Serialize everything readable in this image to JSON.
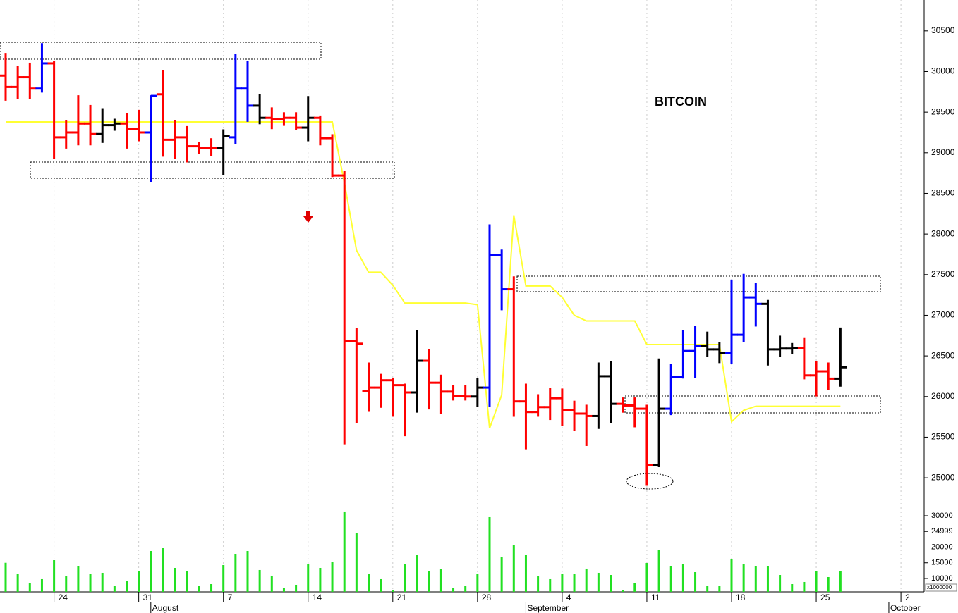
{
  "chart_data": {
    "type": "ohlc",
    "title": "BITCOIN",
    "x": [
      "Jul 20",
      "Jul 21",
      "Jul 22",
      "Jul 23",
      "Jul 24",
      "Jul 25",
      "Jul 26",
      "Jul 27",
      "Jul 28",
      "Jul 29",
      "Jul 30",
      "Jul 31",
      "Aug 1",
      "Aug 2",
      "Aug 3",
      "Aug 4",
      "Aug 5",
      "Aug 6",
      "Aug 7",
      "Aug 8",
      "Aug 9",
      "Aug 10",
      "Aug 11",
      "Aug 12",
      "Aug 13",
      "Aug 14",
      "Aug 15",
      "Aug 16",
      "Aug 17",
      "Aug 18",
      "Aug 19",
      "Aug 20",
      "Aug 21",
      "Aug 22",
      "Aug 23",
      "Aug 24",
      "Aug 25",
      "Aug 26",
      "Aug 27",
      "Aug 28",
      "Aug 29",
      "Aug 30",
      "Aug 31",
      "Sep 1",
      "Sep 2",
      "Sep 3",
      "Sep 4",
      "Sep 5",
      "Sep 6",
      "Sep 7",
      "Sep 8",
      "Sep 9",
      "Sep 10",
      "Sep 11",
      "Sep 12",
      "Sep 13",
      "Sep 14",
      "Sep 15",
      "Sep 16",
      "Sep 17",
      "Sep 18",
      "Sep 19",
      "Sep 20",
      "Sep 21",
      "Sep 22",
      "Sep 23",
      "Sep 24",
      "Sep 25",
      "Sep 26",
      "Sep 27"
    ],
    "open": [
      29950,
      29810,
      29930,
      29790,
      30100,
      29190,
      29250,
      29360,
      29230,
      29340,
      29360,
      29290,
      29250,
      29720,
      29160,
      29190,
      29080,
      29060,
      29060,
      29190,
      29790,
      29580,
      29430,
      29410,
      29430,
      29310,
      29430,
      29180,
      28720,
      26680,
      26070,
      26110,
      26200,
      26140,
      26050,
      26440,
      26170,
      26060,
      26010,
      26000,
      26110,
      27740,
      27320,
      25940,
      25810,
      25870,
      25980,
      25830,
      25790,
      25760,
      26250,
      25910,
      25890,
      25850,
      25160,
      25850,
      26240,
      26560,
      26620,
      26580,
      26540,
      26760,
      27220,
      27140,
      26580,
      26590,
      26600,
      26260,
      26310,
      26220
    ],
    "high": [
      30220,
      30060,
      30100,
      30340,
      30120,
      29390,
      29700,
      29580,
      29540,
      29410,
      29480,
      29520,
      29700,
      30010,
      29390,
      29320,
      29120,
      29170,
      29280,
      30210,
      30120,
      29710,
      29550,
      29490,
      29490,
      29690,
      29450,
      29220,
      28770,
      26830,
      26410,
      26270,
      26220,
      26150,
      26810,
      26570,
      26260,
      26130,
      26130,
      26220,
      28110,
      27800,
      27470,
      26150,
      26020,
      26100,
      26090,
      25940,
      25890,
      26410,
      26430,
      25980,
      25980,
      25890,
      26460,
      26390,
      26810,
      26860,
      26790,
      26660,
      27430,
      27500,
      27390,
      27180,
      26740,
      26650,
      26720,
      26430,
      26410,
      26840
    ],
    "low": [
      29650,
      29670,
      29670,
      29750,
      28930,
      29060,
      29100,
      29100,
      29130,
      29280,
      29060,
      29150,
      28650,
      28960,
      28930,
      28890,
      28990,
      28970,
      28730,
      29120,
      29390,
      29360,
      29300,
      29340,
      29290,
      29150,
      29100,
      28710,
      25420,
      25680,
      25820,
      25870,
      25760,
      25520,
      25810,
      25850,
      25790,
      25960,
      25960,
      25880,
      25880,
      27070,
      25760,
      25360,
      25760,
      25720,
      25650,
      25590,
      25400,
      25610,
      25680,
      25810,
      25630,
      24910,
      25140,
      25780,
      26230,
      26240,
      26500,
      26420,
      26410,
      26680,
      26870,
      26390,
      26500,
      26530,
      26220,
      26010,
      26090,
      26130
    ],
    "close": [
      29810,
      29930,
      29790,
      30100,
      29190,
      29250,
      29360,
      29230,
      29340,
      29360,
      29290,
      29250,
      29700,
      29160,
      29190,
      29080,
      29060,
      29060,
      29210,
      29790,
      29580,
      29430,
      29410,
      29430,
      29310,
      29430,
      29180,
      28720,
      26680,
      26650,
      26110,
      26200,
      26140,
      26050,
      26440,
      26170,
      26060,
      26010,
      26000,
      26110,
      27740,
      27320,
      25940,
      25810,
      25870,
      25980,
      25830,
      25790,
      25760,
      26250,
      25910,
      25890,
      25850,
      25160,
      25850,
      26240,
      26560,
      26620,
      26580,
      26540,
      26760,
      27220,
      27140,
      26580,
      26590,
      26600,
      26260,
      26310,
      26220,
      26360
    ],
    "bar_colors": [
      "red",
      "red",
      "red",
      "blue",
      "red",
      "red",
      "red",
      "red",
      "black",
      "black",
      "red",
      "red",
      "blue",
      "red",
      "red",
      "red",
      "red",
      "red",
      "black",
      "blue",
      "blue",
      "black",
      "red",
      "red",
      "red",
      "black",
      "red",
      "red",
      "red",
      "red",
      "red",
      "red",
      "red",
      "red",
      "black",
      "red",
      "red",
      "red",
      "red",
      "black",
      "blue",
      "blue",
      "red",
      "red",
      "red",
      "red",
      "red",
      "red",
      "red",
      "black",
      "black",
      "red",
      "red",
      "red",
      "black",
      "blue",
      "blue",
      "blue",
      "black",
      "black",
      "blue",
      "blue",
      "blue",
      "black",
      "black",
      "black",
      "red",
      "red",
      "red",
      "black"
    ],
    "stop_line": {
      "color": "#ffff33",
      "values": [
        29380,
        29380,
        29380,
        29380,
        29380,
        29380,
        29380,
        29380,
        29380,
        29380,
        29380,
        29380,
        29380,
        29380,
        29380,
        29380,
        29380,
        29380,
        29380,
        29380,
        29380,
        29380,
        29380,
        29380,
        29380,
        29380,
        29380,
        29380,
        28630,
        27800,
        27530,
        27530,
        27370,
        27150,
        27150,
        27150,
        27150,
        27150,
        27150,
        27130,
        25610,
        26020,
        28230,
        27360,
        27360,
        27360,
        27220,
        27000,
        26930,
        26930,
        26930,
        26930,
        26930,
        26640,
        26640,
        26640,
        26640,
        26640,
        26640,
        26640,
        25690,
        25830,
        25880,
        25880,
        25880,
        25880,
        25880,
        25880,
        25880,
        25880
      ]
    },
    "ylim": [
      24680,
      30880
    ],
    "yticks": [
      25000,
      25500,
      26000,
      26500,
      27000,
      27500,
      28000,
      28500,
      29000,
      29500,
      30000,
      30500
    ],
    "xticks": [
      {
        "value": "Jul 24",
        "label": "24"
      },
      {
        "value": "Jul 31",
        "label": "31"
      },
      {
        "value": "Aug 7",
        "label": "7"
      },
      {
        "value": "Aug 14",
        "label": "14"
      },
      {
        "value": "Aug 21",
        "label": "21"
      },
      {
        "value": "Aug 28",
        "label": "28"
      },
      {
        "value": "Sep 4",
        "label": "4"
      },
      {
        "value": "Sep 11",
        "label": "11"
      },
      {
        "value": "Sep 18",
        "label": "18"
      },
      {
        "value": "Sep 25",
        "label": "25"
      },
      {
        "value": "Oct 2",
        "label": "2"
      }
    ],
    "month_ticks": [
      {
        "value": "Aug 1",
        "label": "August"
      },
      {
        "value": "Sep 1",
        "label": "September"
      },
      {
        "value": "Oct 1",
        "label": "October"
      }
    ],
    "grid": true,
    "volume": {
      "color": "#22e022",
      "unit_label": "x1000000",
      "values": [
        15000,
        11350,
        8430,
        9780,
        15840,
        10670,
        14040,
        11350,
        11800,
        7530,
        9100,
        12250,
        18760,
        19660,
        13370,
        12470,
        7530,
        8200,
        14270,
        17860,
        18760,
        12700,
        10900,
        7080,
        7980,
        14490,
        13370,
        15390,
        31350,
        24380,
        11350,
        9780,
        6400,
        14490,
        17420,
        12250,
        12920,
        7080,
        7530,
        11350,
        29550,
        16740,
        20560,
        17420,
        10670,
        9780,
        11350,
        11570,
        13150,
        11800,
        11120,
        6180,
        8430,
        14940,
        18990,
        13820,
        14490,
        12020,
        7750,
        7530,
        16070,
        14490,
        14040,
        14040,
        11120,
        8200,
        8880,
        12470,
        10450,
        12250
      ],
      "ylim": [
        5730,
        33140
      ],
      "yticks": [
        10000,
        15000,
        20000,
        24999,
        30000
      ]
    }
  }
}
